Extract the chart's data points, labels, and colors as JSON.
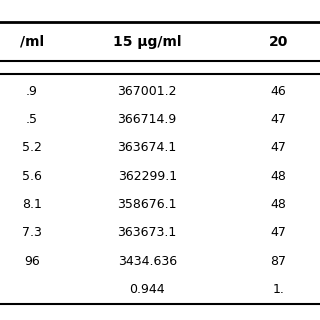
{
  "title": "",
  "col_headers": [
    "/ml",
    "15 μg/ml",
    "20"
  ],
  "rows": [
    [
      ".9",
      "367001.2",
      "46"
    ],
    [
      ".5",
      "366714.9",
      "47"
    ],
    [
      "5.2",
      "363674.1",
      "47"
    ],
    [
      "5.6",
      "362299.1",
      "48"
    ],
    [
      "8.1",
      "358676.1",
      "48"
    ],
    [
      "7.3",
      "363673.1",
      "47"
    ],
    [
      "96",
      "3434.636",
      "87"
    ],
    [
      "",
      "0.944",
      "1."
    ]
  ],
  "bg_color": "#ffffff",
  "header_line_color": "#000000",
  "text_color": "#000000",
  "font_size": 9,
  "header_font_size": 10,
  "figsize": [
    3.2,
    3.2
  ],
  "dpi": 100
}
